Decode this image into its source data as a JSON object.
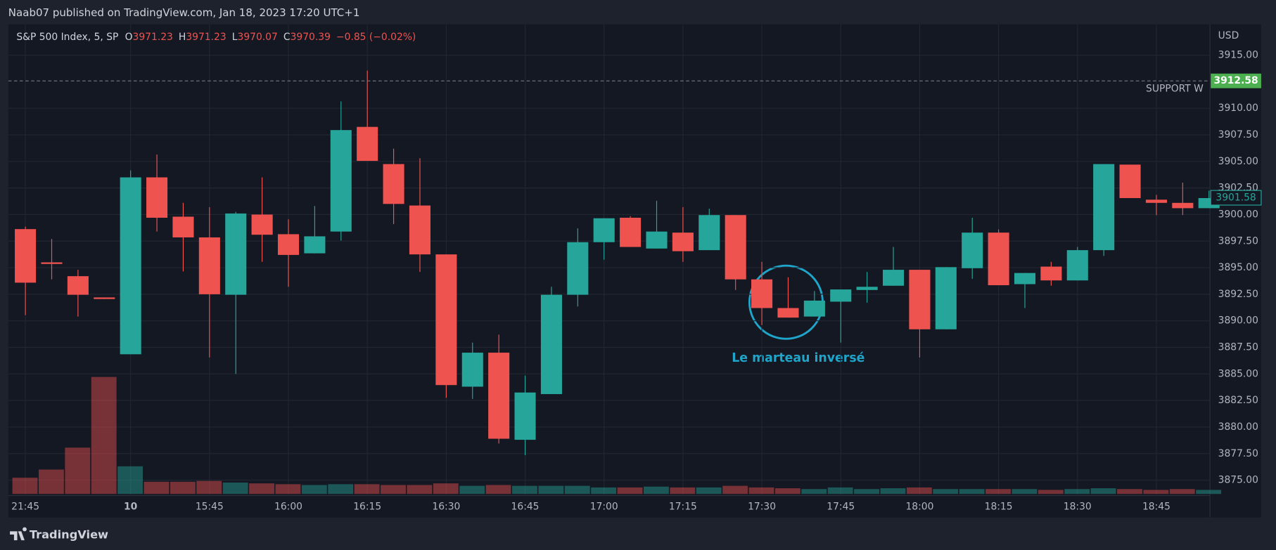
{
  "header": "Naab07 published on TradingView.com, Jan 18, 2023 17:20 UTC+1",
  "footer": "TradingView",
  "chart_data": {
    "type": "candlestick",
    "title": "S&P 500 Index, 5, SP",
    "ohlc_legend": [
      {
        "label": "O",
        "value": 3971.23
      },
      {
        "label": "H",
        "value": 3971.23
      },
      {
        "label": "L",
        "value": 3970.07
      },
      {
        "label": "C",
        "value": 3970.39
      }
    ],
    "change": "−0.85 (−0.02%)",
    "currency": "USD",
    "categories": [
      "21:45",
      null,
      null,
      null,
      "10",
      null,
      null,
      "15:45",
      null,
      null,
      "16:00",
      null,
      null,
      "16:15",
      null,
      null,
      "16:30",
      null,
      null,
      "16:45",
      null,
      null,
      "17:00",
      null,
      null,
      "17:15",
      null,
      null,
      "17:30",
      null,
      null,
      "17:45",
      null,
      null,
      "18:00",
      null,
      null,
      "18:15",
      null,
      null,
      "18:30",
      null,
      null,
      "18:45",
      null,
      null
    ],
    "open": [
      3898.63,
      3895.5,
      3894.2,
      3892.2,
      3886.85,
      3903.5,
      3899.8,
      3897.85,
      3892.45,
      3900.0,
      3898.15,
      3896.35,
      3898.4,
      3908.25,
      3904.75,
      3900.85,
      3896.25,
      3883.8,
      3887.0,
      3878.8,
      3883.1,
      3892.45,
      3897.4,
      3899.7,
      3896.8,
      3898.3,
      3896.65,
      3899.95,
      3893.9,
      3891.2,
      3890.4,
      3891.8,
      3892.9,
      3893.3,
      3894.8,
      3889.2,
      3894.95,
      3898.3,
      3893.45,
      3895.1,
      3893.8,
      3896.65,
      3904.7,
      3901.4,
      3901.1,
      3900.6
    ],
    "high": [
      3898.86,
      3897.7,
      3894.8,
      3892.2,
      3904.15,
      3905.65,
      3901.1,
      3900.7,
      3900.25,
      3903.5,
      3899.55,
      3900.8,
      3910.65,
      3913.55,
      3906.2,
      3905.3,
      3896.25,
      3887.95,
      3888.7,
      3884.85,
      3893.2,
      3898.7,
      3899.65,
      3899.85,
      3901.3,
      3900.7,
      3900.55,
      3899.95,
      3895.55,
      3894.1,
      3892.8,
      3892.95,
      3894.6,
      3896.95,
      3894.8,
      3895.05,
      3899.7,
      3898.6,
      3894.5,
      3895.55,
      3896.95,
      3904.75,
      3904.7,
      3901.85,
      3903.0,
      3902.25
    ],
    "low": [
      3890.53,
      3893.9,
      3890.4,
      3892.05,
      3886.85,
      3898.4,
      3894.65,
      3886.55,
      3885.0,
      3895.55,
      3893.2,
      3896.35,
      3897.55,
      3905.05,
      3899.1,
      3894.6,
      3882.75,
      3882.65,
      3878.45,
      3877.35,
      3883.1,
      3891.35,
      3895.75,
      3896.95,
      3896.8,
      3895.55,
      3896.65,
      3892.9,
      3889.6,
      3890.3,
      3890.4,
      3887.95,
      3891.7,
      3893.3,
      3886.55,
      3889.2,
      3893.95,
      3893.35,
      3891.2,
      3893.3,
      3893.8,
      3896.1,
      3901.55,
      3899.95,
      3899.95,
      3900.6
    ],
    "close": [
      3893.59,
      3895.35,
      3892.45,
      3892.05,
      3903.5,
      3899.7,
      3897.85,
      3892.5,
      3900.1,
      3898.1,
      3896.2,
      3897.95,
      3907.95,
      3905.05,
      3901.0,
      3896.25,
      3883.95,
      3887.0,
      3878.9,
      3883.25,
      3892.45,
      3897.4,
      3899.65,
      3896.95,
      3898.4,
      3896.55,
      3899.95,
      3893.9,
      3891.2,
      3890.3,
      3891.9,
      3892.95,
      3893.2,
      3894.8,
      3889.2,
      3895.05,
      3898.3,
      3893.35,
      3894.5,
      3893.8,
      3896.65,
      3904.75,
      3901.55,
      3901.1,
      3900.6,
      3901.55
    ],
    "volume": [
      20,
      30,
      57,
      144,
      34,
      15,
      15,
      16,
      14,
      13,
      12,
      11,
      12,
      12,
      11,
      11,
      13,
      10,
      11,
      10,
      10,
      10,
      8,
      8,
      9,
      8,
      8,
      10,
      8,
      7,
      6,
      8,
      6,
      7,
      8,
      6,
      6,
      6,
      6,
      5,
      6,
      7,
      6,
      5,
      6,
      5
    ],
    "up_color": "#26a69a",
    "down_color": "#ef5350",
    "ylim": [
      3873.55,
      3917.9
    ],
    "yticks": [
      {
        "value": 3875,
        "label": "3875.00"
      },
      {
        "value": 3877.5,
        "label": "3877.50"
      },
      {
        "value": 3880,
        "label": "3880.00"
      },
      {
        "value": 3882.5,
        "label": "3882.50"
      },
      {
        "value": 3885,
        "label": "3885.00"
      },
      {
        "value": 3887.5,
        "label": "3887.50"
      },
      {
        "value": 3890,
        "label": "3890.00"
      },
      {
        "value": 3892.5,
        "label": "3892.50"
      },
      {
        "value": 3895,
        "label": "3895.00"
      },
      {
        "value": 3897.5,
        "label": "3897.50"
      },
      {
        "value": 3900,
        "label": "3900.00"
      },
      {
        "value": 3902.5,
        "label": "3902.50"
      },
      {
        "value": 3905,
        "label": "3905.00"
      },
      {
        "value": 3907.5,
        "label": "3907.50"
      },
      {
        "value": 3910,
        "label": "3910.00"
      },
      {
        "value": 3915,
        "label": "3915.00"
      }
    ],
    "grid": true,
    "hline": {
      "value": 3912.58,
      "label": "SUPPORT W",
      "color": "#4caf50"
    },
    "last_price": 3901.58,
    "annotation": "Le marteau inversé"
  }
}
